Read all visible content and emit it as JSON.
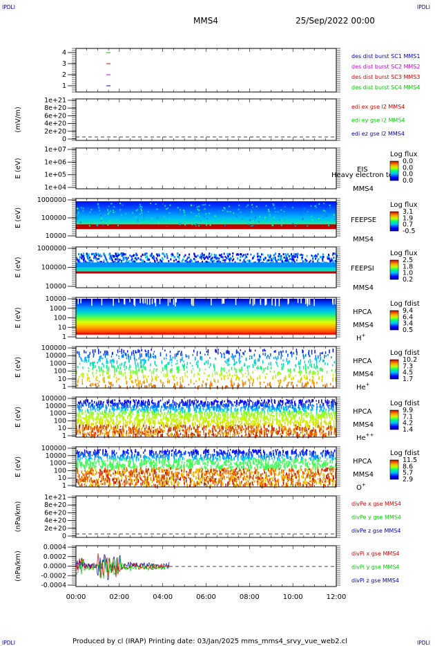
{
  "corner_left_top": "IPDLI",
  "corner_right_top": "IPDLI",
  "corner_left_bottom": "IPDLI",
  "corner_right_bottom": "IPDLI",
  "header": {
    "spacecraft": "MMS4",
    "date": "25/Sep/2022 00:00"
  },
  "footer": "Produced by cl (IRAP)   Printing date: 03/Jan/2025   mms_mms4_srvy_vue_web2.cl",
  "colors": {
    "red": "#dd0000",
    "green": "#00cc00",
    "blue": "#0000bb",
    "magenta": "#cc00cc",
    "dashed": "#000000"
  },
  "chart_data": [
    {
      "type": "line",
      "id": "burst",
      "yticks": [
        "4",
        "3",
        "2",
        "1"
      ],
      "series": [
        {
          "name": "des dist burst SC1 MMS1",
          "color": "#0000cc",
          "value": 1
        },
        {
          "name": "des dist burst SC2 MMS2",
          "color": "#cc00cc",
          "value": 2
        },
        {
          "name": "des dist burst SC3 MMS3",
          "color": "#dd0000",
          "value": 3
        },
        {
          "name": "des dist burst SC4 MMS4",
          "color": "#00cc00",
          "value": 4
        }
      ]
    },
    {
      "type": "line",
      "id": "edi",
      "ylabel": "(mV/m)",
      "yticks": [
        "1e+21",
        "8e+20",
        "6e+20",
        "4e+20",
        "2e+20",
        "0"
      ],
      "series": [
        {
          "name": "edi ex gse l2 MMS4",
          "color": "#dd0000"
        },
        {
          "name": "edi ey gse l2 MMS4",
          "color": "#00cc00"
        },
        {
          "name": "edi ez gse l2 MMS4",
          "color": "#0000bb"
        }
      ]
    },
    {
      "type": "heatmap",
      "id": "eis",
      "ylabel": "E (eV)",
      "yticks": [
        "1e+07",
        "1e+06",
        "1e+05",
        "1e+04"
      ],
      "instrument": "EIS",
      "spacecraft": "MMS4",
      "overlay": "Heavy electron to",
      "cbar_title": "Log flux",
      "cbar_ticks": [
        "0.0",
        "0.0",
        "0.0",
        "0.0"
      ]
    },
    {
      "type": "heatmap",
      "id": "feepse",
      "ylabel": "E (eV)",
      "yticks": [
        "1000000",
        "100000",
        "10000"
      ],
      "instrument": "FEEPSE",
      "spacecraft": "MMS4",
      "cbar_title": "Log flux",
      "cbar_ticks": [
        "3.1",
        "1.9",
        "0.7",
        "-0.5"
      ]
    },
    {
      "type": "heatmap",
      "id": "feepsi",
      "ylabel": "E (eV)",
      "yticks": [
        "1000000",
        "100000",
        "10000"
      ],
      "instrument": "FEEPSI",
      "spacecraft": "MMS4",
      "cbar_title": "Log flux",
      "cbar_ticks": [
        "2.5",
        "1.8",
        "1.0",
        "0.2"
      ]
    },
    {
      "type": "heatmap",
      "id": "hpca_h",
      "ylabel": "E (eV)",
      "yticks": [
        "10000",
        "1000",
        "100",
        "10",
        "1"
      ],
      "instrument": "HPCA",
      "spacecraft": "MMS4",
      "species": "H",
      "charge": "+",
      "cbar_title": "Log fdist",
      "cbar_ticks": [
        "9.4",
        "6.4",
        "3.4",
        "0.5"
      ]
    },
    {
      "type": "heatmap",
      "id": "hpca_he",
      "ylabel": "E (eV)",
      "yticks": [
        "100000",
        "10000",
        "1000",
        "100",
        "10",
        "1"
      ],
      "instrument": "HPCA",
      "spacecraft": "MMS4",
      "species": "He",
      "charge": "+",
      "cbar_title": "Log fdist",
      "cbar_ticks": [
        "10.2",
        "7.3",
        "4.5",
        "1.7"
      ]
    },
    {
      "type": "heatmap",
      "id": "hpca_hepp",
      "ylabel": "E (eV)",
      "yticks": [
        "100000",
        "10000",
        "1000",
        "100",
        "10",
        "1"
      ],
      "instrument": "HPCA",
      "spacecraft": "MMS4",
      "species": "He",
      "charge": "++",
      "cbar_title": "Log fdist",
      "cbar_ticks": [
        "9.9",
        "7.1",
        "4.2",
        "1.4"
      ]
    },
    {
      "type": "heatmap",
      "id": "hpca_o",
      "ylabel": "E (eV)",
      "yticks": [
        "100000",
        "10000",
        "1000",
        "100",
        "10",
        "1"
      ],
      "instrument": "HPCA",
      "spacecraft": "MMS4",
      "species": "O",
      "charge": "+",
      "cbar_title": "Log fdist",
      "cbar_ticks": [
        "11.5",
        "8.6",
        "5.7",
        "2.9"
      ]
    },
    {
      "type": "line",
      "id": "divpe",
      "ylabel": "(nPa/km)",
      "yticks": [
        "1e+21",
        "8e+20",
        "6e+20",
        "4e+20",
        "2e+20",
        "0"
      ],
      "series": [
        {
          "name": "divPe x gse MMS4",
          "color": "#dd0000"
        },
        {
          "name": "divPe y gse MMS4",
          "color": "#00cc00"
        },
        {
          "name": "divPe z gse MMS4",
          "color": "#0000bb"
        }
      ]
    },
    {
      "type": "line",
      "id": "divpi",
      "ylabel": "(nPa/km)",
      "yticks": [
        "0.0004",
        "0.0002",
        "0.0000",
        "-0.0002",
        "-0.0004"
      ],
      "ylim": [
        -0.0005,
        0.0005
      ],
      "series": [
        {
          "name": "divPi x gse MMS4",
          "color": "#dd0000"
        },
        {
          "name": "divPi y gse MMS4",
          "color": "#00cc00"
        },
        {
          "name": "divPi z gse MMS4",
          "color": "#0000bb"
        }
      ]
    }
  ],
  "xaxis": {
    "ticks": [
      "00:00",
      "02:00",
      "04:00",
      "06:00",
      "08:00",
      "10:00",
      "12:00"
    ]
  }
}
